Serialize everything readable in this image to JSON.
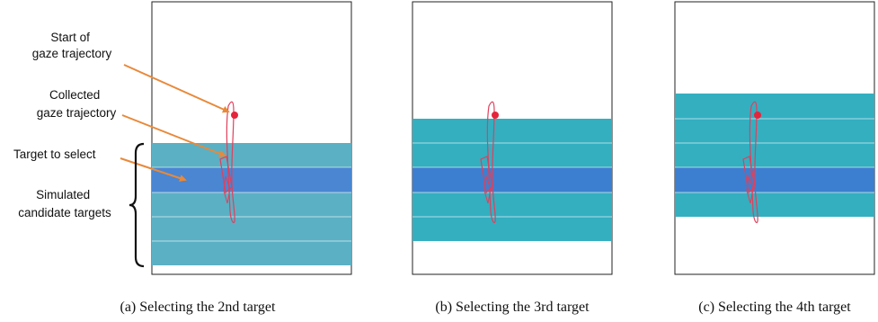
{
  "annotations": {
    "start_line1": "Start of",
    "start_line2": "gaze trajectory",
    "collected_line1": "Collected",
    "collected_line2": "gaze trajectory",
    "target": "Target to select",
    "simulated_line1": "Simulated",
    "simulated_line2": "candidate targets"
  },
  "captions": {
    "a": "(a) Selecting the 2nd target",
    "b": "(b) Selecting the 3rd target",
    "c": "(c) Selecting the 4th target"
  },
  "colors": {
    "panel_a_rows": "#5bb0c4",
    "panel_bc_rows": "#33afc0",
    "selected_row": "#3c7fd0",
    "selected_row_a": "#4a86d2",
    "trajectory": "#e0405c",
    "start_dot": "#e5243b",
    "arrow": "#e8893a",
    "panel_border": "#222222"
  },
  "panels": [
    {
      "id": "a",
      "selected_index": 2
    },
    {
      "id": "b",
      "selected_index": 3
    },
    {
      "id": "c",
      "selected_index": 4
    }
  ]
}
